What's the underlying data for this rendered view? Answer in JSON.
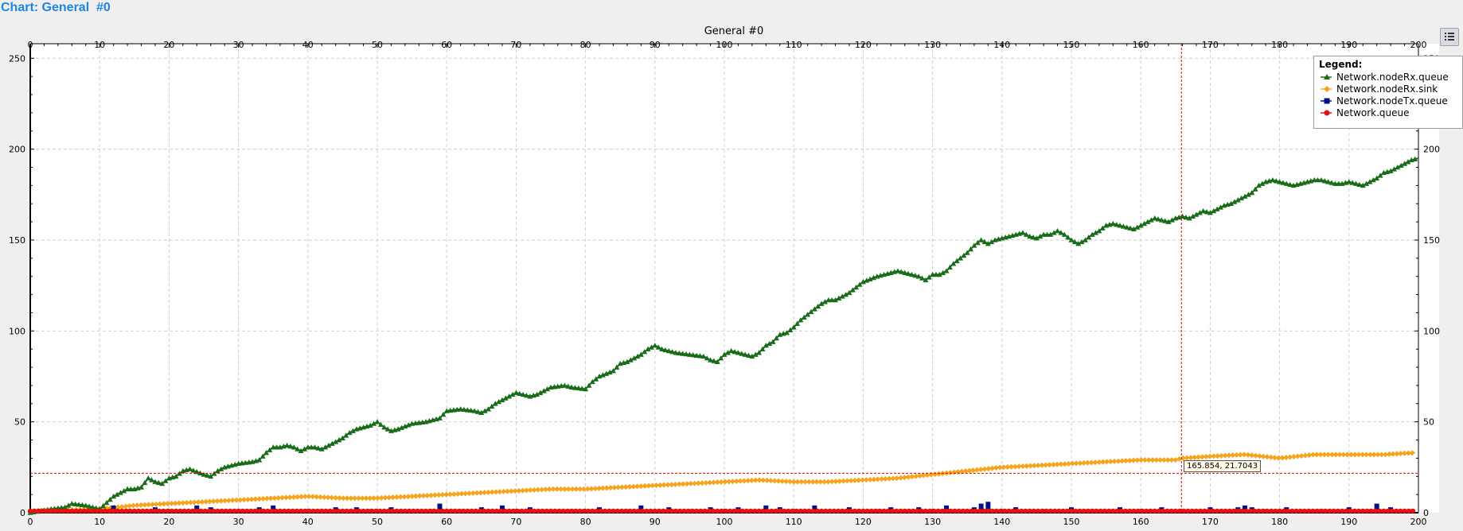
{
  "header": {
    "title": "Chart: General  #0"
  },
  "legend": {
    "title": "Legend:"
  },
  "tooltip": {
    "text": "165.854, 21.7043"
  },
  "crosshair": {
    "x": 165.854,
    "y": 21.7043,
    "color": "#e00000"
  },
  "icons": {
    "legend_toggle": "legend-list-icon"
  },
  "chart_data": {
    "type": "line",
    "title": "General  #0",
    "xlabel": "",
    "ylabel": "",
    "xlim": [
      0,
      200
    ],
    "ylim": [
      0,
      258
    ],
    "grid": true,
    "legend_position": "top-right",
    "x_ticks": [
      0,
      10,
      20,
      30,
      40,
      50,
      60,
      70,
      80,
      90,
      100,
      110,
      120,
      130,
      140,
      150,
      160,
      170,
      180,
      190,
      200
    ],
    "y_ticks": [
      0,
      50,
      100,
      150,
      200,
      250
    ],
    "x_tick_labels": [
      "0",
      "10",
      "20",
      "30",
      "40",
      "50",
      "60",
      "70",
      "80",
      "90",
      "100",
      "110",
      "120",
      "130",
      "140",
      "150",
      "160",
      "170",
      "180",
      "190",
      "200"
    ],
    "y_tick_labels": [
      "0",
      "50",
      "100",
      "150",
      "200",
      "250"
    ],
    "series": [
      {
        "name": "Network.nodeRx.queue",
        "color": "#1a6b1a",
        "marker": "triangle",
        "x": [
          0,
          3,
          5,
          6,
          8,
          10,
          12,
          14,
          15,
          16,
          17,
          18,
          19,
          20,
          21,
          22,
          23,
          25,
          26,
          27,
          28,
          30,
          32,
          33,
          34,
          35,
          36,
          37,
          38,
          39,
          40,
          41,
          42,
          43,
          44,
          45,
          46,
          47,
          48,
          49,
          50,
          51,
          52,
          53,
          55,
          57,
          59,
          60,
          62,
          64,
          65,
          66,
          67,
          68,
          70,
          72,
          73,
          75,
          77,
          78,
          80,
          81,
          82,
          84,
          85,
          86,
          87,
          88,
          89,
          90,
          91,
          92,
          93,
          95,
          97,
          98,
          99,
          100,
          101,
          102,
          104,
          105,
          106,
          107,
          108,
          109,
          110,
          111,
          112,
          113,
          114,
          115,
          116,
          117,
          118,
          120,
          122,
          123,
          124,
          125,
          126,
          127,
          128,
          129,
          130,
          131,
          132,
          133,
          134,
          135,
          136,
          137,
          138,
          139,
          140,
          141,
          142,
          143,
          144,
          145,
          146,
          147,
          148,
          149,
          150,
          151,
          152,
          153,
          154,
          155,
          156,
          157,
          158,
          159,
          160,
          161,
          162,
          163,
          164,
          165,
          166,
          167,
          168,
          169,
          170,
          171,
          172,
          173,
          174,
          175,
          176,
          177,
          178,
          179,
          180,
          181,
          182,
          183,
          184,
          185,
          186,
          187,
          188,
          189,
          190,
          191,
          192,
          193,
          194,
          195,
          196,
          197,
          198,
          199,
          200
        ],
        "y": [
          0,
          2,
          3,
          5,
          4,
          2,
          9,
          13,
          13,
          14,
          19,
          17,
          16,
          19,
          20,
          23,
          24,
          21,
          20,
          23,
          25,
          27,
          28,
          29,
          33,
          36,
          36,
          37,
          36,
          34,
          36,
          36,
          35,
          37,
          39,
          41,
          44,
          46,
          47,
          48,
          50,
          47,
          45,
          46,
          49,
          50,
          52,
          56,
          57,
          56,
          55,
          57,
          60,
          62,
          66,
          64,
          65,
          69,
          70,
          69,
          68,
          72,
          75,
          78,
          82,
          83,
          85,
          87,
          90,
          92,
          90,
          89,
          88,
          87,
          86,
          84,
          83,
          87,
          89,
          88,
          86,
          88,
          92,
          94,
          98,
          99,
          102,
          106,
          109,
          112,
          115,
          117,
          117,
          119,
          121,
          127,
          130,
          131,
          132,
          133,
          132,
          131,
          130,
          128,
          131,
          131,
          133,
          137,
          140,
          143,
          147,
          150,
          148,
          150,
          151,
          152,
          153,
          154,
          152,
          151,
          153,
          153,
          155,
          153,
          150,
          148,
          150,
          153,
          155,
          158,
          159,
          158,
          157,
          156,
          158,
          160,
          162,
          161,
          160,
          162,
          163,
          162,
          164,
          166,
          165,
          167,
          169,
          170,
          172,
          174,
          176,
          180,
          182,
          183,
          182,
          181,
          180,
          181,
          182,
          183,
          183,
          182,
          181,
          181,
          182,
          181,
          180,
          182,
          184,
          187,
          188,
          190,
          192,
          194,
          195
        ],
        "x_end": 199.5
      },
      {
        "name": "Network.nodeRx.sink",
        "color": "#f5a41c",
        "marker": "diamond",
        "x": [
          0,
          10,
          15,
          20,
          25,
          30,
          35,
          40,
          45,
          50,
          55,
          60,
          65,
          70,
          75,
          80,
          85,
          90,
          95,
          100,
          105,
          110,
          115,
          120,
          125,
          130,
          135,
          140,
          145,
          150,
          155,
          160,
          165,
          166,
          170,
          175,
          180,
          185,
          190,
          195,
          199.5
        ],
        "y": [
          1,
          2,
          4,
          5,
          6,
          7,
          8,
          9,
          8,
          8,
          9,
          10,
          11,
          12,
          13,
          13,
          14,
          15,
          16,
          17,
          18,
          17,
          17,
          18,
          19,
          21,
          23,
          25,
          26,
          27,
          28,
          29,
          29,
          30,
          31,
          32,
          30,
          32,
          32,
          32,
          33
        ]
      },
      {
        "name": "Network.nodeTx.queue",
        "color": "#00108a",
        "marker": "square",
        "x": [
          0,
          12,
          14,
          18,
          24,
          26,
          30,
          33,
          35,
          40,
          44,
          47,
          49,
          52,
          58,
          59,
          62,
          65,
          68,
          70,
          72,
          78,
          82,
          86,
          88,
          92,
          95,
          98,
          100,
          102,
          106,
          108,
          110,
          113,
          118,
          122,
          124,
          128,
          130,
          132,
          136,
          137,
          138,
          140,
          142,
          146,
          150,
          153,
          157,
          160,
          163,
          166,
          170,
          174,
          175,
          176,
          178,
          181,
          186,
          190,
          193,
          194,
          196,
          199
        ],
        "y": [
          1,
          4,
          2,
          3,
          4,
          3,
          2,
          3,
          4,
          2,
          3,
          3,
          2,
          3,
          2,
          5,
          2,
          3,
          4,
          2,
          3,
          2,
          3,
          2,
          4,
          3,
          2,
          3,
          2,
          3,
          4,
          3,
          2,
          4,
          3,
          2,
          3,
          3,
          2,
          4,
          3,
          5,
          6,
          2,
          3,
          2,
          3,
          2,
          3,
          2,
          3,
          2,
          3,
          3,
          4,
          3,
          2,
          3,
          2,
          3,
          2,
          5,
          3,
          2
        ]
      },
      {
        "name": "Network.queue",
        "color": "#e81010",
        "marker": "circle",
        "x": [
          0,
          25,
          50,
          75,
          100,
          125,
          150,
          175,
          199.5
        ],
        "y": [
          1,
          1,
          1,
          1,
          1,
          1,
          1,
          1,
          1
        ]
      }
    ]
  }
}
